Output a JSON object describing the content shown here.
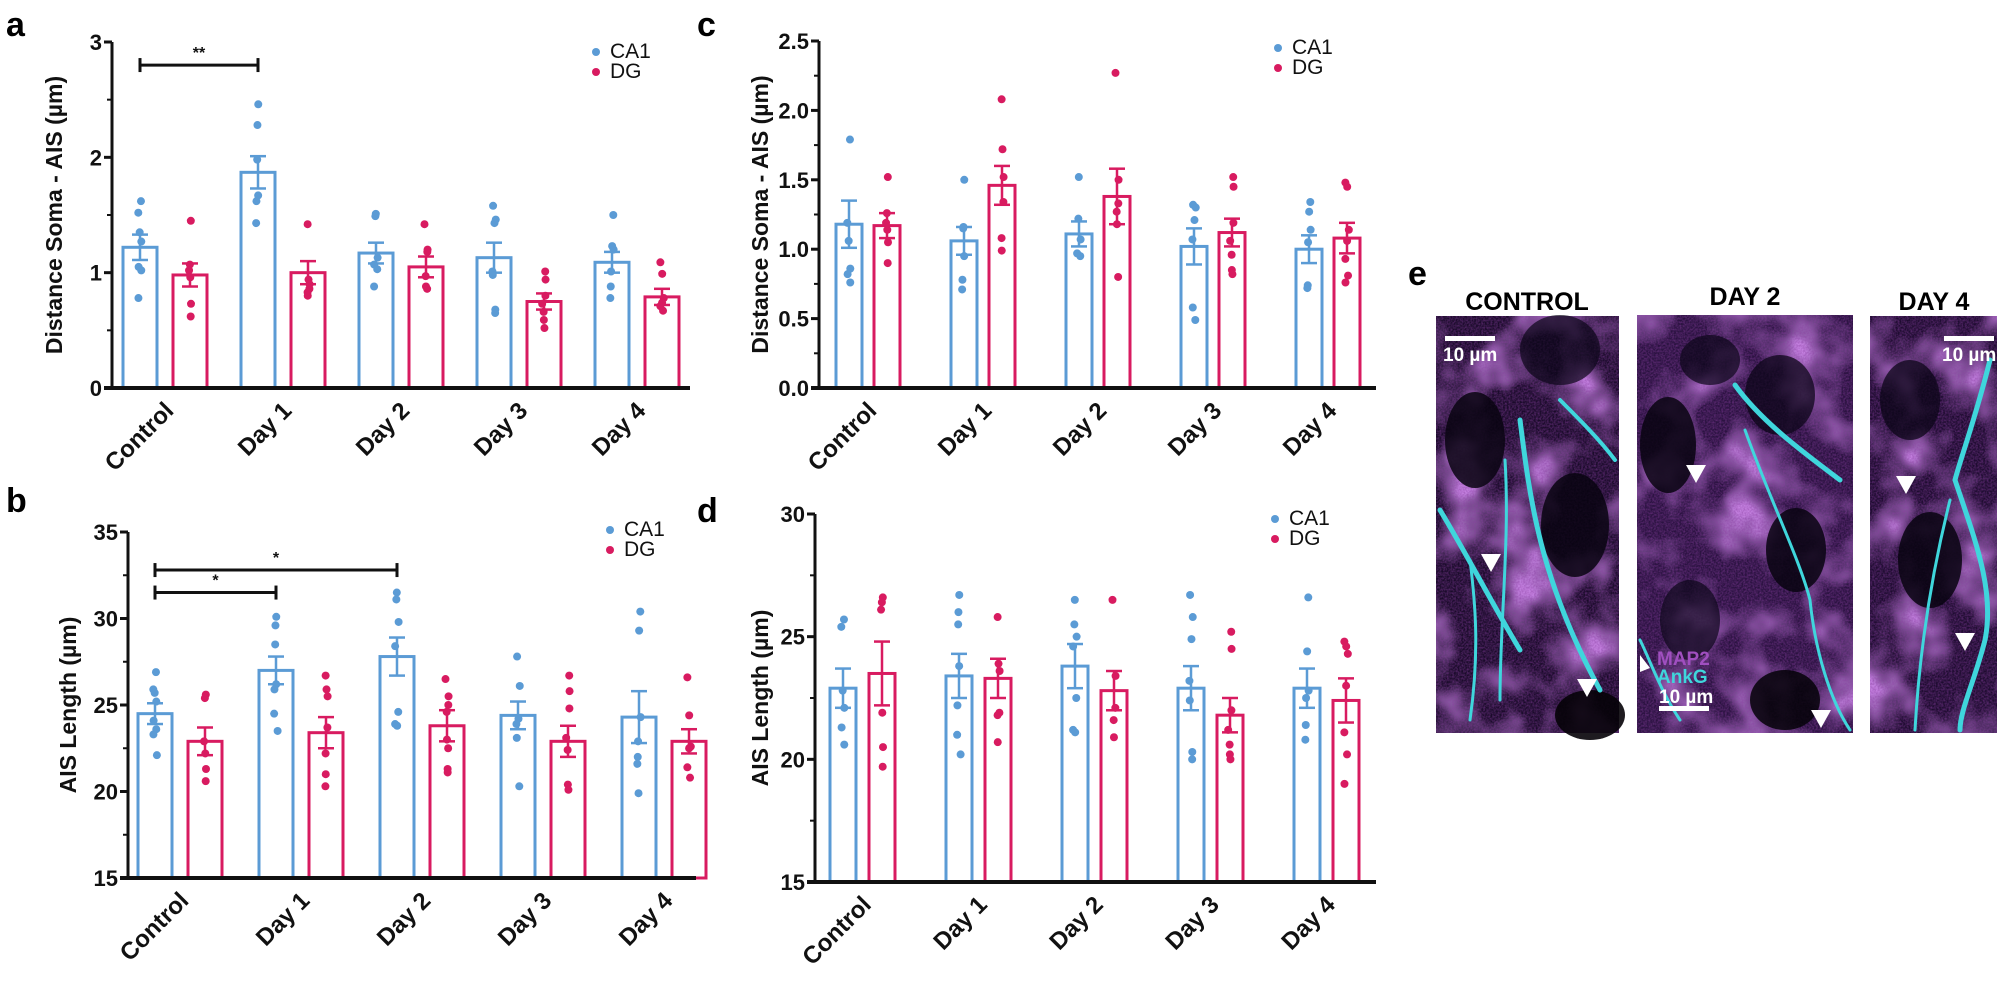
{
  "figure": {
    "panels": {
      "a": "a",
      "b": "b",
      "c": "c",
      "d": "d",
      "e": "e"
    },
    "colors": {
      "CA1": "#5b9bd5",
      "DG": "#d81b60",
      "axis": "#111111",
      "cyan_stain": "#3fd6dc",
      "magenta_stain": "#a04fc0"
    }
  },
  "chart_data": [
    {
      "id": "a",
      "type": "bar",
      "title": "",
      "ylabel": "Distance  Soma - AIS (µm)",
      "xlabel": "",
      "categories": [
        "Control",
        "Day 1",
        "Day 2",
        "Day 3",
        "Day 4"
      ],
      "ylim": [
        0,
        3
      ],
      "yticks": [
        0,
        1,
        2,
        3
      ],
      "ytick_labels": [
        "0",
        "1",
        "2",
        "3"
      ],
      "minor_ticks": [
        0.5,
        1.5,
        2.5
      ],
      "legend": [
        "CA1",
        "DG"
      ],
      "legend_position": "top-right",
      "series": [
        {
          "name": "CA1",
          "values": [
            1.22,
            1.87,
            1.17,
            1.13,
            1.09
          ],
          "sem": [
            0.11,
            0.14,
            0.09,
            0.13,
            0.09
          ],
          "points": [
            [
              1.62,
              1.52,
              1.35,
              1.27,
              1.05,
              1.02,
              0.78
            ],
            [
              2.46,
              2.28,
              1.98,
              1.67,
              1.62,
              1.43
            ],
            [
              1.51,
              1.49,
              1.13,
              1.07,
              1.03,
              0.88
            ],
            [
              1.58,
              1.46,
              1.43,
              1.01,
              0.98,
              0.68,
              0.65
            ],
            [
              1.5,
              1.23,
              1.2,
              1.01,
              0.88,
              0.78
            ]
          ]
        },
        {
          "name": "DG",
          "values": [
            0.98,
            1.0,
            1.05,
            0.75,
            0.79
          ],
          "sem": [
            0.1,
            0.1,
            0.09,
            0.07,
            0.07
          ],
          "points": [
            [
              1.45,
              1.07,
              1.02,
              0.96,
              0.73,
              0.62
            ],
            [
              1.42,
              0.94,
              0.9,
              0.86,
              0.83,
              0.8
            ],
            [
              1.42,
              1.2,
              1.18,
              0.97,
              0.88,
              0.86
            ],
            [
              1.01,
              0.94,
              0.8,
              0.73,
              0.66,
              0.59,
              0.52
            ],
            [
              1.09,
              0.99,
              0.78,
              0.74,
              0.71,
              0.67
            ]
          ]
        }
      ],
      "significance": [
        {
          "from": "Control",
          "to": "Day 1",
          "label": "**",
          "y": 2.8
        }
      ]
    },
    {
      "id": "b",
      "type": "bar",
      "title": "",
      "ylabel": "AIS Length (µm)",
      "xlabel": "",
      "categories": [
        "Control",
        "Day 1",
        "Day 2",
        "Day 3",
        "Day 4"
      ],
      "ylim": [
        15,
        35
      ],
      "yticks": [
        15,
        20,
        25,
        30,
        35
      ],
      "ytick_labels": [
        "15",
        "20",
        "25",
        "30",
        "35"
      ],
      "minor_ticks": [
        17.5,
        22.5,
        27.5,
        32.5
      ],
      "legend": [
        "CA1",
        "DG"
      ],
      "legend_position": "top-right",
      "series": [
        {
          "name": "CA1",
          "values": [
            24.5,
            27.0,
            27.8,
            24.4,
            24.3
          ],
          "sem": [
            0.6,
            0.8,
            1.1,
            0.8,
            1.5
          ],
          "points": [
            [
              26.9,
              25.9,
              25.7,
              25.2,
              24.1,
              23.6,
              23.3,
              22.1
            ],
            [
              30.1,
              29.6,
              28.5,
              26.2,
              25.9,
              24.5,
              23.5
            ],
            [
              31.5,
              31.1,
              29.8,
              28.4,
              24.6,
              23.9,
              23.8
            ],
            [
              27.8,
              26.1,
              24.2,
              23.9,
              23.1,
              20.3
            ],
            [
              30.4,
              29.3,
              24.3,
              22.9,
              22.0,
              21.6,
              19.9
            ]
          ]
        },
        {
          "name": "DG",
          "values": [
            22.9,
            23.4,
            23.8,
            22.9,
            22.9
          ],
          "sem": [
            0.8,
            0.9,
            0.9,
            0.9,
            0.7
          ],
          "points": [
            [
              25.6,
              25.4,
              22.9,
              22.2,
              21.3,
              20.6
            ],
            [
              26.7,
              25.9,
              25.5,
              23.7,
              22.2,
              21.0,
              20.3
            ],
            [
              26.5,
              25.5,
              25.0,
              24.6,
              23.0,
              22.5,
              21.3,
              21.1
            ],
            [
              26.7,
              25.8,
              24.8,
              23.1,
              22.4,
              20.4,
              20.1
            ],
            [
              26.6,
              24.4,
              22.6,
              22.5,
              21.4,
              20.8
            ]
          ]
        }
      ],
      "significance": [
        {
          "from": "Control",
          "to": "Day 1",
          "label": "*",
          "y": 31.5
        },
        {
          "from": "Control",
          "to": "Day 2",
          "label": "*",
          "y": 32.8
        }
      ]
    },
    {
      "id": "c",
      "type": "bar",
      "title": "",
      "ylabel": "Distance  Soma - AIS (µm)",
      "xlabel": "",
      "categories": [
        "Control",
        "Day 1",
        "Day 2",
        "Day 3",
        "Day 4"
      ],
      "ylim": [
        0,
        2.5
      ],
      "yticks": [
        0,
        0.5,
        1.0,
        1.5,
        2.0,
        2.5
      ],
      "ytick_labels": [
        "0.0",
        "0.5",
        "1.0",
        "1.5",
        "2.0",
        "2.5"
      ],
      "minor_ticks": [
        0.25,
        0.75,
        1.25,
        1.75,
        2.25
      ],
      "legend": [
        "CA1",
        "DG"
      ],
      "legend_position": "top-right",
      "series": [
        {
          "name": "CA1",
          "values": [
            1.18,
            1.06,
            1.11,
            1.02,
            1.0
          ],
          "sem": [
            0.17,
            0.1,
            0.09,
            0.13,
            0.1
          ],
          "points": [
            [
              1.79,
              1.19,
              1.06,
              0.86,
              0.82,
              0.76
            ],
            [
              1.5,
              1.16,
              1.15,
              0.95,
              0.78,
              0.71
            ],
            [
              1.52,
              1.22,
              1.07,
              0.97,
              0.95
            ],
            [
              1.32,
              1.3,
              1.21,
              1.07,
              0.58,
              0.49
            ],
            [
              1.34,
              1.27,
              1.14,
              1.05,
              0.74,
              0.72
            ]
          ]
        },
        {
          "name": "DG",
          "values": [
            1.17,
            1.46,
            1.38,
            1.12,
            1.08
          ],
          "sem": [
            0.09,
            0.14,
            0.2,
            0.1,
            0.11
          ],
          "points": [
            [
              1.52,
              1.26,
              1.19,
              1.14,
              1.05,
              0.9
            ],
            [
              2.08,
              1.72,
              1.52,
              1.34,
              1.08,
              0.99
            ],
            [
              2.27,
              1.5,
              1.33,
              1.27,
              1.18,
              0.8
            ],
            [
              1.52,
              1.45,
              1.19,
              1.06,
              0.96,
              0.85,
              0.82
            ],
            [
              1.48,
              1.45,
              1.14,
              1.06,
              0.93,
              0.81,
              0.76
            ]
          ]
        }
      ],
      "significance": []
    },
    {
      "id": "d",
      "type": "bar",
      "title": "",
      "ylabel": "AIS Length (µm)",
      "xlabel": "",
      "categories": [
        "Control",
        "Day 1",
        "Day 2",
        "Day 3",
        "Day 4"
      ],
      "ylim": [
        15,
        30
      ],
      "yticks": [
        15,
        20,
        25,
        30
      ],
      "ytick_labels": [
        "15",
        "20",
        "25",
        "30"
      ],
      "minor_ticks": [
        17.5,
        22.5,
        27.5
      ],
      "legend": [
        "CA1",
        "DG"
      ],
      "legend_position": "top-right",
      "series": [
        {
          "name": "CA1",
          "values": [
            22.9,
            23.4,
            23.8,
            22.9,
            22.9
          ],
          "sem": [
            0.8,
            0.9,
            0.9,
            0.9,
            0.8
          ],
          "points": [
            [
              25.7,
              25.4,
              22.8,
              22.1,
              21.3,
              20.6
            ],
            [
              26.7,
              26.0,
              25.5,
              23.8,
              22.2,
              21.0,
              20.2
            ],
            [
              26.5,
              25.5,
              25.0,
              24.6,
              22.5,
              21.2,
              21.1
            ],
            [
              26.7,
              25.8,
              24.9,
              23.2,
              22.4,
              20.3,
              20.0
            ],
            [
              26.6,
              24.4,
              22.8,
              22.5,
              21.4,
              20.8
            ]
          ]
        },
        {
          "name": "DG",
          "values": [
            23.5,
            23.3,
            22.8,
            21.8,
            22.4
          ],
          "sem": [
            1.3,
            0.8,
            0.8,
            0.7,
            0.9
          ],
          "points": [
            [
              26.6,
              26.4,
              26.1,
              21.9,
              20.5,
              19.7
            ],
            [
              25.8,
              23.9,
              23.6,
              21.9,
              21.8,
              20.7
            ],
            [
              26.5,
              23.4,
              22.1,
              21.6,
              20.9
            ],
            [
              25.2,
              24.5,
              22.0,
              21.2,
              20.6,
              20.2,
              20.0
            ],
            [
              24.8,
              24.6,
              24.3,
              23.0,
              21.1,
              20.2,
              19.0
            ]
          ]
        }
      ],
      "significance": []
    }
  ],
  "micrographs": {
    "panel_label": "e",
    "tiles": [
      {
        "title": "CONTROL",
        "scale_bar": "10 µm",
        "arrowheads": 2
      },
      {
        "title": "DAY 2",
        "scale_bar": "10 µm",
        "arrowheads": 3,
        "stain_labels": [
          "MAP2",
          "AnkG"
        ]
      },
      {
        "title": "DAY 4",
        "scale_bar": "10 µm",
        "arrowheads": 2
      }
    ]
  }
}
